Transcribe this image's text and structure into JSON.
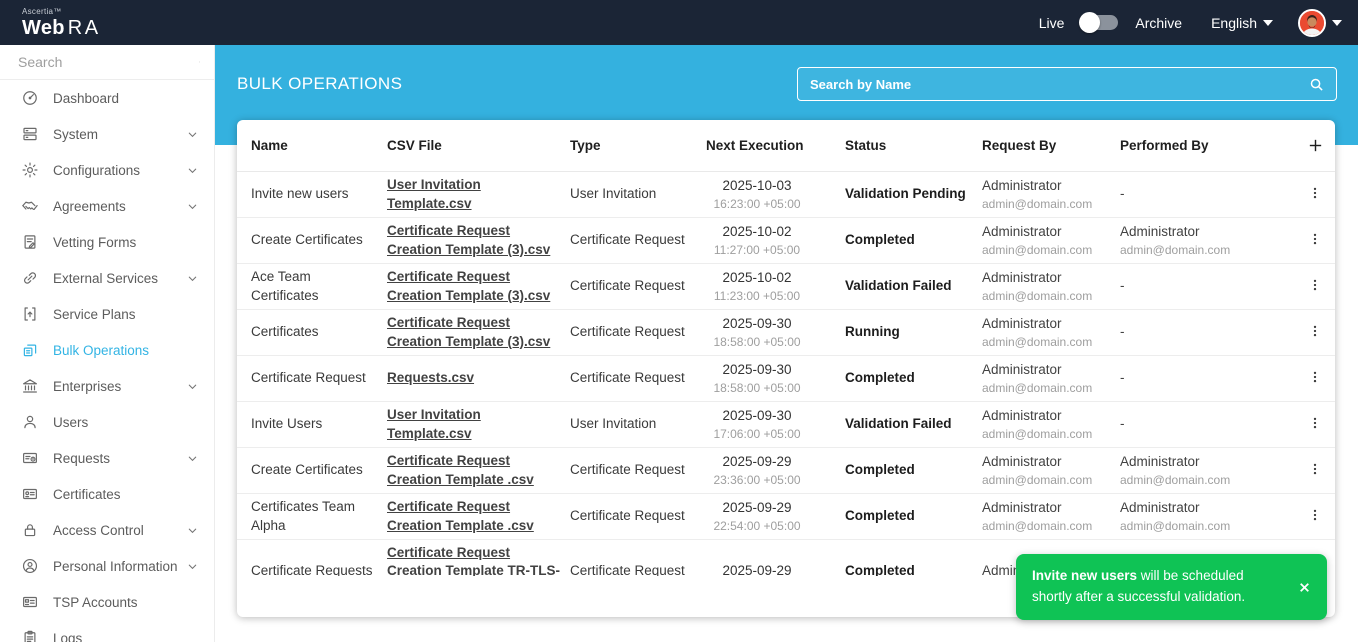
{
  "colors": {
    "topbar_navy": "#1b2536",
    "accent_blue": "#34b1df",
    "active_item_blue": "#33b4e4",
    "toast_green": "#0fc355"
  },
  "topbar": {
    "brand_small": "Ascertia™",
    "brand_web": "Web",
    "brand_ra": "RA",
    "live_label": "Live",
    "archive_label": "Archive",
    "language_label": "English"
  },
  "sidebar": {
    "search_placeholder": "Search",
    "items": [
      {
        "label": "Dashboard",
        "icon": "dashboard-icon",
        "expandable": false,
        "active": false
      },
      {
        "label": "System",
        "icon": "system-icon",
        "expandable": true,
        "active": false
      },
      {
        "label": "Configurations",
        "icon": "gear-icon",
        "expandable": true,
        "active": false
      },
      {
        "label": "Agreements",
        "icon": "handshake-icon",
        "expandable": true,
        "active": false
      },
      {
        "label": "Vetting Forms",
        "icon": "vetting-forms-icon",
        "expandable": false,
        "active": false
      },
      {
        "label": "External Services",
        "icon": "link-icon",
        "expandable": true,
        "active": false
      },
      {
        "label": "Service Plans",
        "icon": "service-plans-icon",
        "expandable": false,
        "active": false
      },
      {
        "label": "Bulk Operations",
        "icon": "bulk-operations-icon",
        "expandable": false,
        "active": true
      },
      {
        "label": "Enterprises",
        "icon": "bank-icon",
        "expandable": true,
        "active": false
      },
      {
        "label": "Users",
        "icon": "user-icon",
        "expandable": false,
        "active": false
      },
      {
        "label": "Requests",
        "icon": "requests-card-icon",
        "expandable": true,
        "active": false
      },
      {
        "label": "Certificates",
        "icon": "certificate-card-icon",
        "expandable": false,
        "active": false
      },
      {
        "label": "Access Control",
        "icon": "lock-icon",
        "expandable": true,
        "active": false
      },
      {
        "label": "Personal Information",
        "icon": "person-circle-icon",
        "expandable": true,
        "active": false
      },
      {
        "label": "TSP Accounts",
        "icon": "tsp-card-icon",
        "expandable": false,
        "active": false
      },
      {
        "label": "Logs",
        "icon": "logs-icon",
        "expandable": false,
        "active": false
      }
    ]
  },
  "header": {
    "title": "BULK OPERATIONS",
    "search_placeholder": "Search by Name"
  },
  "table": {
    "columns": [
      "Name",
      "CSV File",
      "Type",
      "Next Execution",
      "Status",
      "Request By",
      "Performed By"
    ],
    "rows": [
      {
        "name": "Invite new users",
        "csv": "User Invitation Template.csv",
        "type": "User Invitation",
        "date": "2025-10-03",
        "time": "16:23:00 +05:00",
        "status": "Validation Pending",
        "request_by": {
          "name": "Administrator",
          "email": "admin@domain.com"
        },
        "performed_by": {
          "name": "-",
          "email": ""
        }
      },
      {
        "name": "Create Certificates",
        "csv": "Certificate Request Creation Template (3).csv",
        "type": "Certificate Request",
        "date": "2025-10-02",
        "time": "11:27:00 +05:00",
        "status": "Completed",
        "request_by": {
          "name": "Administrator",
          "email": "admin@domain.com"
        },
        "performed_by": {
          "name": "Administrator",
          "email": "admin@domain.com"
        }
      },
      {
        "name": "Ace Team Certificates",
        "csv": "Certificate Request Creation Template (3).csv",
        "type": "Certificate Request",
        "date": "2025-10-02",
        "time": "11:23:00 +05:00",
        "status": "Validation Failed",
        "request_by": {
          "name": "Administrator",
          "email": "admin@domain.com"
        },
        "performed_by": {
          "name": "-",
          "email": ""
        }
      },
      {
        "name": "Certificates",
        "csv": "Certificate Request Creation Template (3).csv",
        "type": "Certificate Request",
        "date": "2025-09-30",
        "time": "18:58:00 +05:00",
        "status": "Running",
        "request_by": {
          "name": "Administrator",
          "email": "admin@domain.com"
        },
        "performed_by": {
          "name": "-",
          "email": ""
        }
      },
      {
        "name": "Certificate Request",
        "csv": "Requests.csv",
        "type": "Certificate Request",
        "date": "2025-09-30",
        "time": "18:58:00 +05:00",
        "status": "Completed",
        "request_by": {
          "name": "Administrator",
          "email": "admin@domain.com"
        },
        "performed_by": {
          "name": "-",
          "email": ""
        }
      },
      {
        "name": "Invite Users",
        "csv": "User Invitation Template.csv",
        "type": "User Invitation",
        "date": "2025-09-30",
        "time": "17:06:00 +05:00",
        "status": "Validation Failed",
        "request_by": {
          "name": "Administrator",
          "email": "admin@domain.com"
        },
        "performed_by": {
          "name": "-",
          "email": ""
        }
      },
      {
        "name": "Create Certificates",
        "csv": "Certificate Request Creation Template .csv",
        "type": "Certificate Request",
        "date": "2025-09-29",
        "time": "23:36:00 +05:00",
        "status": "Completed",
        "request_by": {
          "name": "Administrator",
          "email": "admin@domain.com"
        },
        "performed_by": {
          "name": "Administrator",
          "email": "admin@domain.com"
        }
      },
      {
        "name": "Certificates Team Alpha",
        "csv": "Certificate Request Creation Template .csv",
        "type": "Certificate Request",
        "date": "2025-09-29",
        "time": "22:54:00 +05:00",
        "status": "Completed",
        "request_by": {
          "name": "Administrator",
          "email": "admin@domain.com"
        },
        "performed_by": {
          "name": "Administrator",
          "email": "admin@domain.com"
        }
      },
      {
        "name": "Certificate Requests",
        "csv": "Certificate Request Creation Template TR-TLS-Server-",
        "type": "Certificate Request",
        "date": "2025-09-29",
        "time": "",
        "status": "Completed",
        "request_by": {
          "name": "Administrator",
          "email": ""
        },
        "performed_by": {
          "name": "",
          "email": ""
        }
      }
    ]
  },
  "toast": {
    "highlight": "Invite new users",
    "message": " will be scheduled shortly after a successful validation."
  }
}
